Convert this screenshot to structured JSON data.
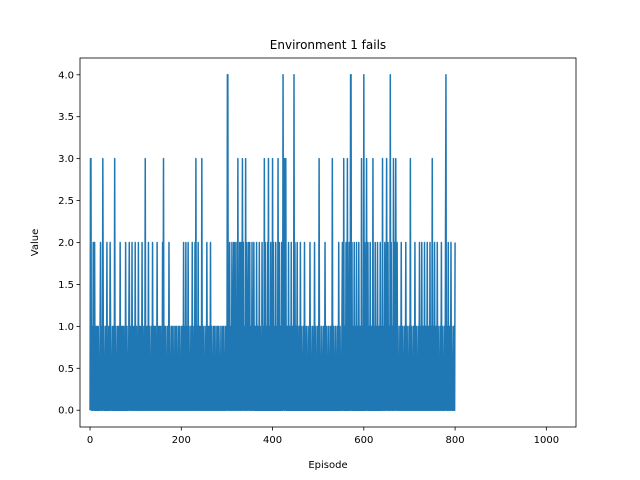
{
  "chart_data": {
    "type": "line",
    "title": "Environment 1 fails",
    "xlabel": "Episode",
    "ylabel": "Value",
    "xlim": [
      -22,
      1065
    ],
    "ylim": [
      -0.2,
      4.2
    ],
    "xticks": [
      0,
      200,
      400,
      600,
      800,
      1000
    ],
    "yticks": [
      0.0,
      0.5,
      1.0,
      1.5,
      2.0,
      2.5,
      3.0,
      3.5,
      4.0
    ],
    "grid": false,
    "legend": "none",
    "series_color": "#1f77b4",
    "series": [
      {
        "x_start": 0,
        "x_step": 1,
        "values": [
          0,
          3,
          3,
          0,
          0,
          1,
          0,
          2,
          1,
          0,
          2,
          0,
          1,
          0,
          0,
          1,
          0,
          0,
          1,
          0,
          0,
          0,
          1,
          2,
          0,
          0,
          1,
          0,
          3,
          1,
          0,
          0,
          0,
          1,
          0,
          1,
          0,
          2,
          0,
          0,
          0,
          1,
          0,
          0,
          2,
          1,
          0,
          0,
          0,
          1,
          0,
          0,
          1,
          0,
          3,
          0,
          1,
          0,
          0,
          0,
          1,
          0,
          0,
          1,
          0,
          0,
          2,
          0,
          1,
          0,
          0,
          1,
          0,
          0,
          1,
          0,
          0,
          0,
          2,
          0,
          0,
          1,
          0,
          0,
          0,
          1,
          2,
          0,
          0,
          1,
          0,
          0,
          2,
          0,
          1,
          0,
          0,
          1,
          0,
          2,
          0,
          0,
          1,
          0,
          0,
          0,
          2,
          0,
          0,
          1,
          0,
          0,
          1,
          0,
          2,
          0,
          0,
          0,
          1,
          0,
          0,
          3,
          0,
          1,
          0,
          0,
          1,
          0,
          2,
          0,
          0,
          1,
          0,
          0,
          0,
          1,
          0,
          2,
          0,
          0,
          1,
          0,
          0,
          1,
          0,
          0,
          0,
          2,
          0,
          1,
          0,
          0,
          1,
          0,
          0,
          1,
          0,
          0,
          0,
          2,
          0,
          3,
          0,
          1,
          0,
          0,
          1,
          0,
          0,
          0,
          1,
          0,
          0,
          2,
          0,
          1,
          0,
          0,
          0,
          1,
          0,
          0,
          1,
          0,
          0,
          0,
          1,
          0,
          0,
          1,
          0,
          0,
          0,
          1,
          0,
          0,
          1,
          0,
          0,
          0,
          1,
          0,
          0,
          1,
          0,
          2,
          0,
          0,
          1,
          0,
          2,
          0,
          1,
          0,
          0,
          2,
          0,
          1,
          0,
          0,
          0,
          1,
          0,
          0,
          2,
          0,
          1,
          0,
          0,
          0,
          2,
          0,
          3,
          0,
          1,
          0,
          0,
          2,
          0,
          0,
          1,
          0,
          0,
          1,
          0,
          3,
          0,
          0,
          1,
          0,
          0,
          0,
          1,
          0,
          0,
          0,
          2,
          0,
          1,
          0,
          0,
          1,
          0,
          0,
          2,
          0,
          0,
          1,
          0,
          0,
          0,
          1,
          0,
          0,
          1,
          0,
          0,
          0,
          1,
          0,
          0,
          1,
          0,
          0,
          0,
          1,
          0,
          0,
          0,
          1,
          0,
          0,
          1,
          0,
          0,
          0,
          1,
          0,
          0,
          1,
          0,
          4,
          4,
          0,
          1,
          0,
          2,
          0,
          0,
          1,
          0,
          2,
          0,
          0,
          1,
          2,
          0,
          0,
          2,
          0,
          1,
          0,
          2,
          0,
          3,
          0,
          1,
          0,
          2,
          0,
          0,
          2,
          0,
          1,
          3,
          0,
          2,
          0,
          0,
          1,
          0,
          3,
          0,
          2,
          0,
          0,
          1,
          2,
          0,
          0,
          2,
          0,
          1,
          0,
          0,
          2,
          0,
          1,
          0,
          2,
          0,
          0,
          1,
          0,
          0,
          2,
          0,
          0,
          1,
          0,
          0,
          2,
          0,
          1,
          0,
          0,
          0,
          2,
          0,
          1,
          0,
          0,
          3,
          0,
          2,
          0,
          1,
          0,
          0,
          2,
          0,
          3,
          0,
          1,
          0,
          0,
          2,
          0,
          1,
          0,
          3,
          0,
          2,
          0,
          0,
          1,
          0,
          2,
          0,
          0,
          1,
          0,
          3,
          0,
          0,
          2,
          0,
          1,
          0,
          0,
          2,
          0,
          0,
          4,
          1,
          0,
          3,
          0,
          2,
          3,
          0,
          0,
          1,
          0,
          0,
          2,
          0,
          0,
          1,
          0,
          0,
          2,
          0,
          0,
          1,
          0,
          0,
          4,
          0,
          2,
          0,
          1,
          0,
          0,
          2,
          0,
          0,
          0,
          1,
          0,
          0,
          2,
          0,
          1,
          0,
          0,
          0,
          1,
          0,
          0,
          2,
          0,
          0,
          0,
          1,
          0,
          0,
          0,
          1,
          0,
          0,
          0,
          2,
          0,
          1,
          0,
          0,
          0,
          1,
          0,
          0,
          0,
          2,
          0,
          0,
          1,
          0,
          0,
          0,
          1,
          0,
          0,
          3,
          0,
          1,
          0,
          0,
          0,
          1,
          0,
          0,
          0,
          1,
          0,
          0,
          2,
          0,
          0,
          1,
          0,
          0,
          0,
          1,
          0,
          0,
          0,
          1,
          0,
          0,
          1,
          0,
          3,
          0,
          0,
          1,
          0,
          0,
          0,
          1,
          0,
          0,
          0,
          1,
          0,
          0,
          2,
          0,
          0,
          1,
          0,
          0,
          0,
          1,
          2,
          0,
          0,
          3,
          0,
          1,
          0,
          0,
          2,
          0,
          0,
          3,
          0,
          1,
          0,
          2,
          0,
          0,
          4,
          4,
          0,
          2,
          0,
          1,
          0,
          0,
          2,
          0,
          1,
          0,
          0,
          2,
          0,
          1,
          0,
          0,
          2,
          0,
          0,
          1,
          0,
          0,
          3,
          0,
          1,
          0,
          0,
          4,
          0,
          2,
          0,
          0,
          1,
          3,
          0,
          0,
          2,
          0,
          1,
          0,
          0,
          2,
          0,
          0,
          1,
          0,
          0,
          3,
          0,
          1,
          0,
          0,
          2,
          0,
          1,
          0,
          0,
          2,
          0,
          0,
          1,
          0,
          0,
          2,
          0,
          1,
          0,
          0,
          3,
          0,
          0,
          1,
          0,
          2,
          0,
          0,
          1,
          3,
          0,
          0,
          2,
          0,
          1,
          0,
          0,
          4,
          0,
          2,
          0,
          1,
          0,
          0,
          3,
          0,
          2,
          0,
          1,
          3,
          0,
          0,
          2,
          0,
          1,
          0,
          0,
          0,
          1,
          0,
          0,
          2,
          0,
          0,
          1,
          0,
          0,
          0,
          1,
          0,
          0,
          2,
          0,
          0,
          1,
          0,
          0,
          0,
          1,
          0,
          0,
          3,
          0,
          0,
          1,
          0,
          0,
          0,
          1,
          0,
          0,
          2,
          0,
          0,
          1,
          0,
          0,
          0,
          1,
          0,
          0,
          2,
          0,
          0,
          1,
          0,
          2,
          0,
          0,
          1,
          0,
          0,
          2,
          0,
          0,
          1,
          0,
          0,
          2,
          0,
          0,
          1,
          0,
          0,
          2,
          0,
          1,
          0,
          0,
          3,
          0,
          1,
          0,
          0,
          2,
          0,
          0,
          1,
          0,
          0,
          2,
          0,
          1,
          0,
          0,
          0,
          1,
          0,
          0,
          2,
          0,
          1,
          0,
          0,
          0,
          1,
          0,
          0,
          2,
          4,
          0,
          1,
          0,
          0,
          2,
          0,
          0,
          1,
          0,
          0,
          2,
          0,
          1,
          0,
          0,
          0,
          1,
          0,
          0,
          2
        ]
      }
    ]
  }
}
